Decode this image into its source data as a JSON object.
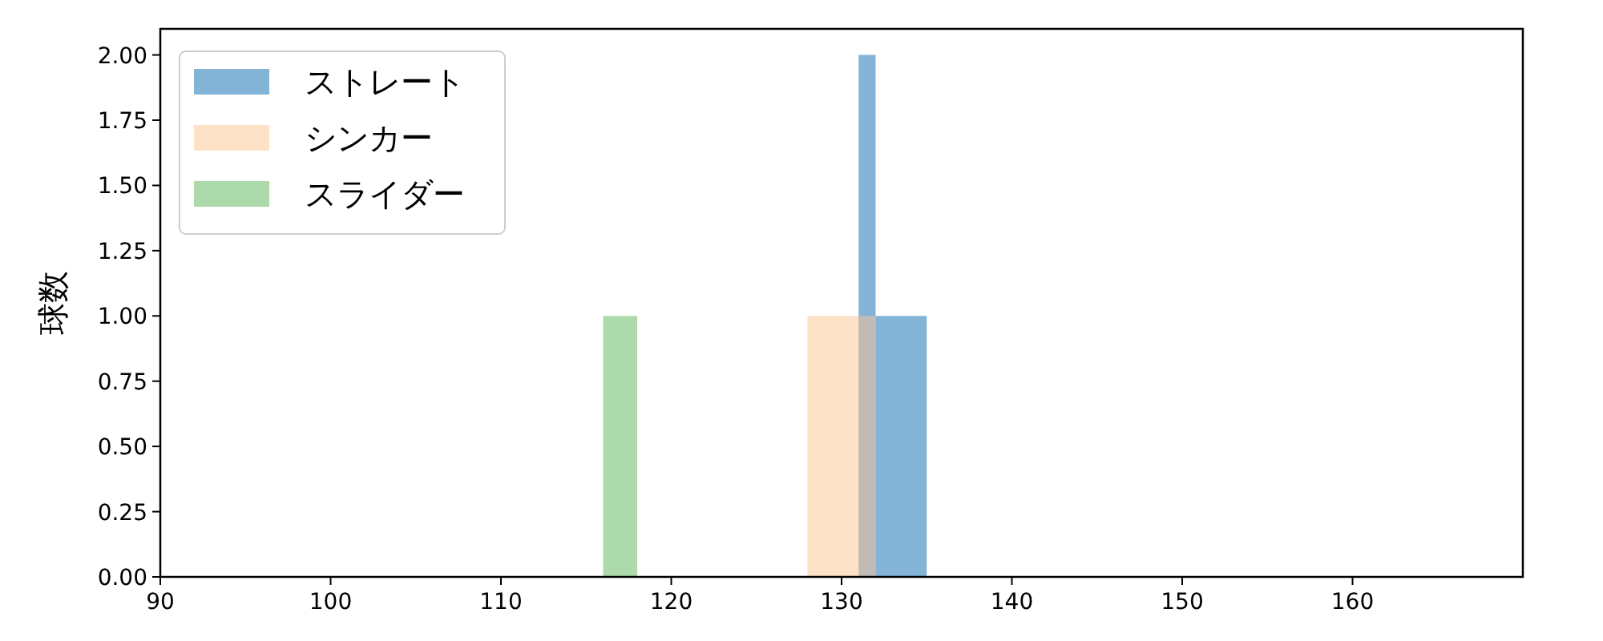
{
  "chart_data": {
    "type": "histogram",
    "ylabel": "球数",
    "bins": [
      116,
      118,
      128,
      131,
      132,
      135
    ],
    "series": [
      {
        "name": "ストレート",
        "color": "#84b3d8",
        "values": [
          0,
          0,
          0,
          2,
          1
        ]
      },
      {
        "name": "シンカー",
        "color": "#fde2c8",
        "values": [
          0,
          0,
          1,
          1,
          0
        ]
      },
      {
        "name": "スライダー",
        "color": "#acdaaa",
        "values": [
          1,
          0,
          0,
          0,
          0
        ]
      }
    ],
    "xlim": [
      90,
      170
    ],
    "ylim": [
      0,
      2.1
    ],
    "xticks": [
      90,
      100,
      110,
      120,
      130,
      140,
      150,
      160
    ],
    "yticks": [
      {
        "value": 0,
        "label": "0.00"
      },
      0.25,
      {
        "value": 0.5,
        "label": "0.50"
      },
      0.75,
      {
        "value": 1,
        "label": "1.00"
      },
      1.25,
      {
        "value": 1.5,
        "label": "1.50"
      },
      1.75,
      {
        "value": 2,
        "label": "2.00"
      }
    ],
    "legend": "top left"
  }
}
